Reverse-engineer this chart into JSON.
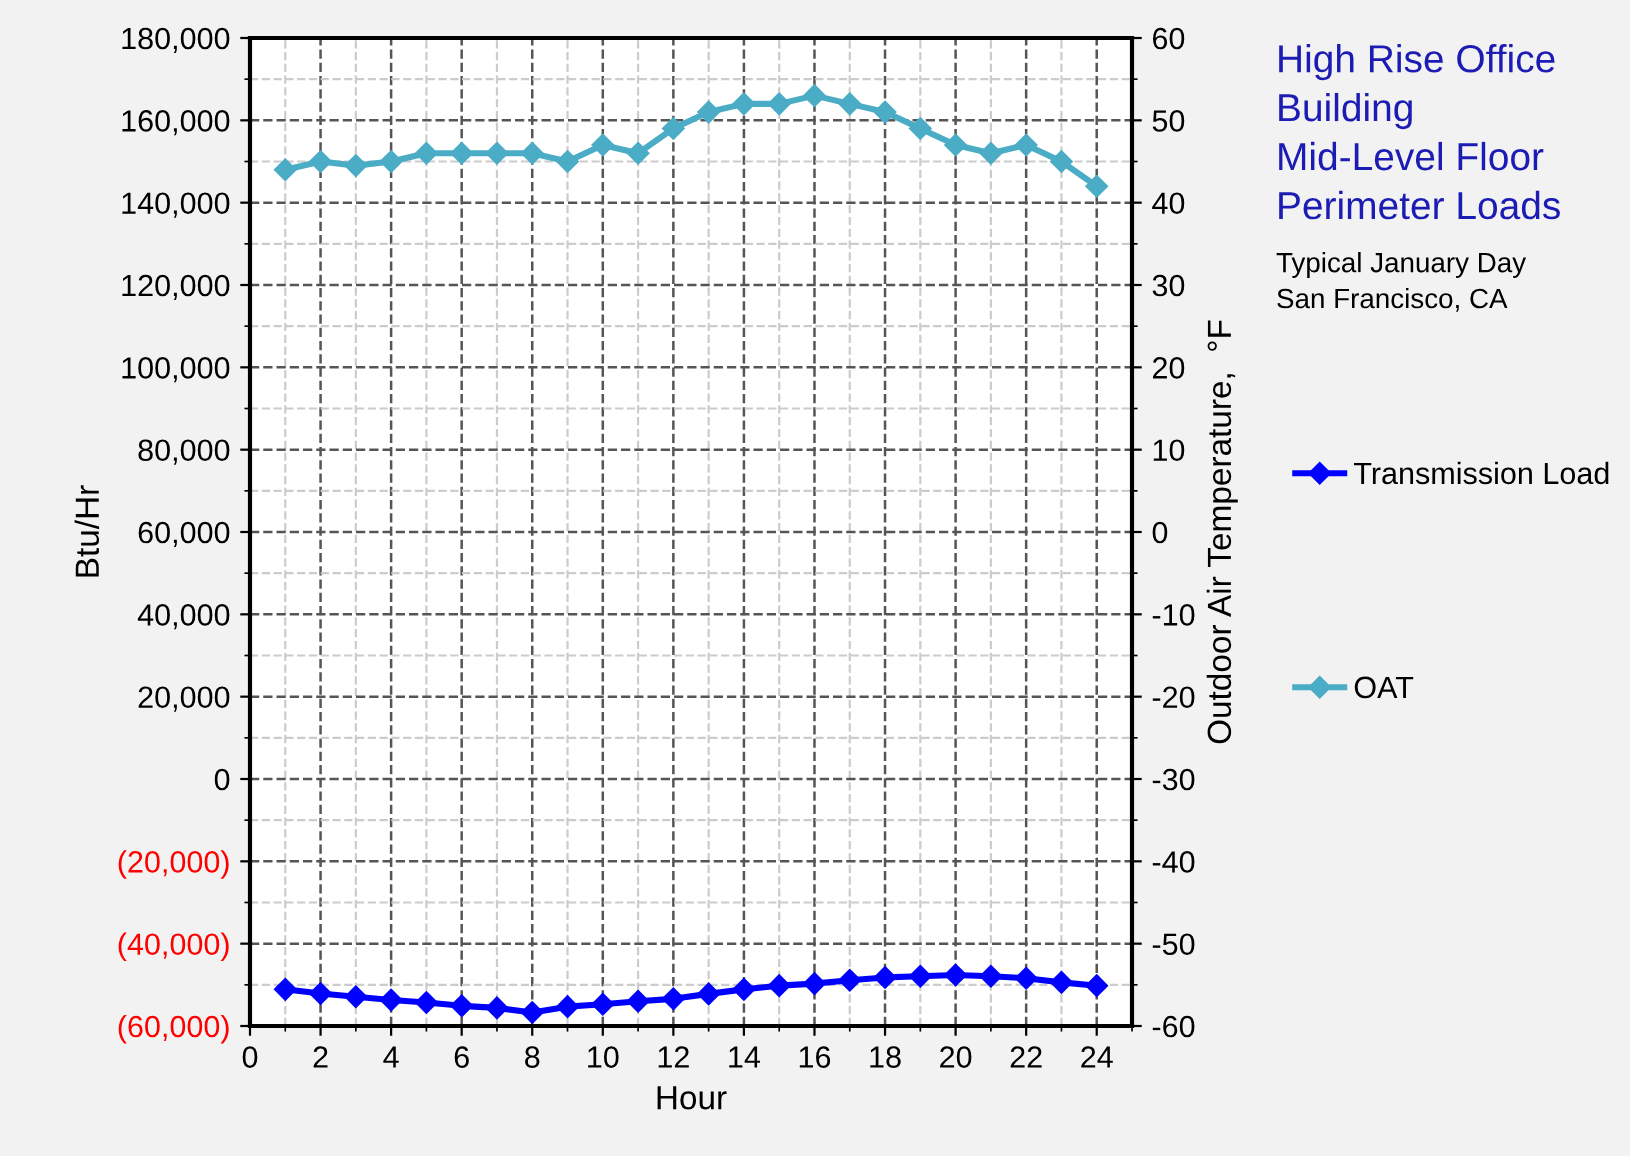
{
  "chart_data": {
    "type": "line",
    "title": "High Rise Office\nBuilding\nMid-Level Floor\nPerimeter Loads",
    "subtitle": "Typical January Day\nSan Francisco, CA",
    "xlabel": "Hour",
    "ylabel": "Btu/Hr",
    "y2label": "Outdoor Air Temperature,  °F",
    "x": [
      1,
      2,
      3,
      4,
      5,
      6,
      7,
      8,
      9,
      10,
      11,
      12,
      13,
      14,
      15,
      16,
      17,
      18,
      19,
      20,
      21,
      22,
      23,
      24
    ],
    "series": [
      {
        "name": "Transmission Load",
        "color": "#0000ff",
        "values": [
          -51100,
          -52100,
          -52900,
          -53700,
          -54300,
          -55100,
          -55600,
          -56700,
          -55300,
          -54700,
          -54000,
          -53400,
          -52200,
          -51100,
          -50200,
          -49700,
          -48900,
          -48200,
          -47900,
          -47600,
          -47900,
          -48400,
          -49400,
          -50200
        ]
      },
      {
        "name": "OAT",
        "color": "#4bacc6",
        "axis": "y2",
        "values": [
          44,
          45,
          44.5,
          45,
          46,
          46,
          46,
          46,
          45,
          47,
          46,
          49,
          51,
          52,
          52,
          53,
          52,
          51,
          49,
          47,
          46,
          47,
          45,
          42
        ]
      }
    ],
    "xlim": [
      0,
      25
    ],
    "xticks": [
      0,
      2,
      4,
      6,
      8,
      10,
      12,
      14,
      16,
      18,
      20,
      22,
      24
    ],
    "ylim": [
      -60000,
      180000
    ],
    "yticks": [
      {
        "value": -60000,
        "label": "(60,000)"
      },
      {
        "value": -40000,
        "label": "(40,000)"
      },
      {
        "value": -20000,
        "label": "(20,000)"
      },
      {
        "value": 0,
        "label": "0"
      },
      {
        "value": 20000,
        "label": "20,000"
      },
      {
        "value": 40000,
        "label": "40,000"
      },
      {
        "value": 60000,
        "label": "60,000"
      },
      {
        "value": 80000,
        "label": "80,000"
      },
      {
        "value": 100000,
        "label": "100,000"
      },
      {
        "value": 120000,
        "label": "120,000"
      },
      {
        "value": 140000,
        "label": "140,000"
      },
      {
        "value": 160000,
        "label": "160,000"
      },
      {
        "value": 180000,
        "label": "180,000"
      }
    ],
    "y2lim": [
      -60,
      60
    ],
    "y2ticks": [
      -60,
      -50,
      -40,
      -30,
      -20,
      -10,
      0,
      10,
      20,
      30,
      40,
      50,
      60
    ],
    "grid": true,
    "legend": "right",
    "marker": "diamond",
    "line_style": "solid"
  }
}
